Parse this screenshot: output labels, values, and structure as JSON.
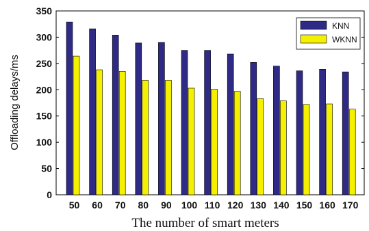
{
  "chart_data": {
    "type": "bar",
    "title": "",
    "xlabel": "The number of smart meters",
    "ylabel": "Offloading delays/ms",
    "categories": [
      "50",
      "60",
      "70",
      "80",
      "90",
      "100",
      "110",
      "120",
      "130",
      "140",
      "150",
      "160",
      "170"
    ],
    "series": [
      {
        "name": "KNN",
        "color": "#2e2a86",
        "values": [
          329,
          316,
          304,
          289,
          290,
          275,
          275,
          268,
          252,
          245,
          236,
          239,
          234
        ]
      },
      {
        "name": "WKNN",
        "color": "#f5f000",
        "values": [
          264,
          238,
          235,
          218,
          218,
          203,
          201,
          197,
          183,
          179,
          172,
          173,
          163
        ]
      }
    ],
    "ylim": [
      0,
      350
    ],
    "yticks": [
      0,
      50,
      100,
      150,
      200,
      250,
      300,
      350
    ],
    "legend_position": "top-right",
    "grid": false
  }
}
